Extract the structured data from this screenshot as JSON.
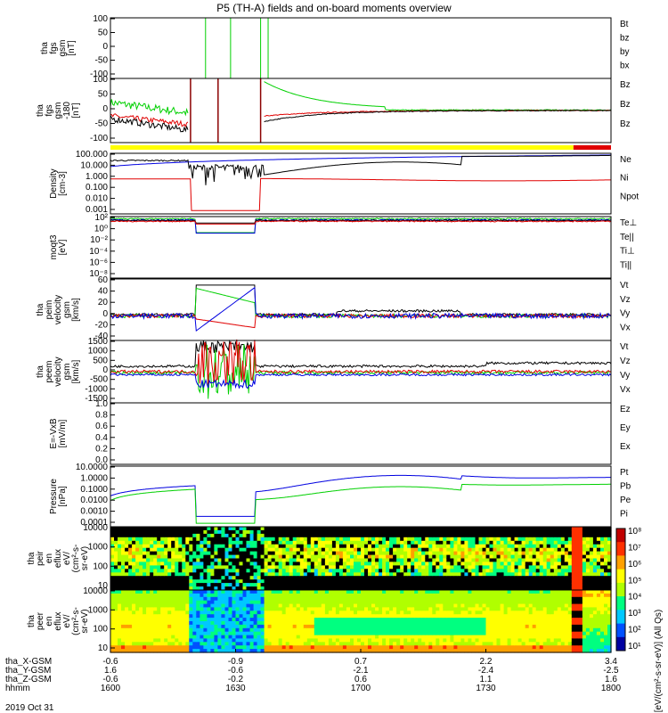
{
  "title": "P5 (TH-A) fields and on-board moments overview",
  "date": "2019 Oct 31",
  "colors": {
    "black": "#000000",
    "red": "#e00000",
    "green": "#00d000",
    "blue": "#0000e0",
    "yellow": "#ffff00"
  },
  "chart_data": [
    {
      "id": "fgs",
      "type": "line",
      "ylabel": [
        "tha",
        "fgs",
        "gsm",
        "[nT]"
      ],
      "yticks": [
        "100",
        "50",
        "0",
        "-50",
        "-100"
      ],
      "ylim": [
        -100,
        100
      ],
      "legend": [
        {
          "name": "Bt",
          "color": "#000000"
        },
        {
          "name": "bz",
          "color": "#e00000"
        },
        {
          "name": "by",
          "color": "#00d000"
        },
        {
          "name": "bx",
          "color": "#0000e0"
        }
      ]
    },
    {
      "id": "fgs_hi",
      "type": "line",
      "ylabel": [
        "tha",
        "fgs",
        "gsm",
        "-180",
        "[nT]"
      ],
      "yticks": [
        "100",
        "50",
        "0",
        "-50",
        "-100"
      ],
      "ylim": [
        -120,
        120
      ],
      "legend": [
        {
          "name": "Bz",
          "color": "#000000"
        },
        {
          "name": "Bz",
          "color": "#e00000"
        },
        {
          "name": "Bz",
          "color": "#00d000"
        }
      ]
    },
    {
      "id": "density",
      "type": "line",
      "ylabel": [
        "Density",
        "[cm-3]"
      ],
      "scale": "log",
      "yticks": [
        "100.000",
        "10.000",
        "1.000",
        "0.100",
        "0.010",
        "0.001"
      ],
      "legend": [
        {
          "name": "Ne",
          "color": "#e00000"
        },
        {
          "name": "Ni",
          "color": "#000000"
        },
        {
          "name": "Npot",
          "color": "#0000e0"
        }
      ]
    },
    {
      "id": "temp",
      "type": "line",
      "ylabel": [
        "moqt3",
        "[eV]"
      ],
      "scale": "log",
      "yticks": [
        "10²",
        "10⁰",
        "10⁻²",
        "10⁻⁴",
        "10⁻⁶",
        "10⁻⁸"
      ],
      "legend": [
        {
          "name": "Te⊥",
          "color": "#e00000"
        },
        {
          "name": "Te||",
          "color": "#000000"
        },
        {
          "name": "Ti⊥",
          "color": "#0000e0"
        },
        {
          "name": "Ti||",
          "color": "#00d000"
        }
      ]
    },
    {
      "id": "peim",
      "type": "line",
      "ylabel": [
        "tha",
        "peim",
        "velocity",
        "gsm",
        "[km/s]"
      ],
      "yticks": [
        "60",
        "40",
        "20",
        "0",
        "-20",
        "-40"
      ],
      "ylim": [
        -40,
        60
      ],
      "legend": [
        {
          "name": "Vt",
          "color": "#000000"
        },
        {
          "name": "Vz",
          "color": "#e00000"
        },
        {
          "name": "Vy",
          "color": "#00d000"
        },
        {
          "name": "Vx",
          "color": "#0000e0"
        }
      ]
    },
    {
      "id": "peem",
      "type": "line",
      "ylabel": [
        "tha",
        "peem",
        "velocity",
        "gsm",
        "[km/s]"
      ],
      "yticks": [
        "1500",
        "1000",
        "500",
        "0",
        "-500",
        "-1000",
        "-1500"
      ],
      "ylim": [
        -1500,
        1500
      ],
      "legend": [
        {
          "name": "Vt",
          "color": "#000000"
        },
        {
          "name": "Vz",
          "color": "#e00000"
        },
        {
          "name": "Vy",
          "color": "#00d000"
        },
        {
          "name": "Vx",
          "color": "#0000e0"
        }
      ]
    },
    {
      "id": "efield",
      "type": "line",
      "ylabel": [
        "E=-VxB",
        "[mV/m]"
      ],
      "yticks": [
        "1.0",
        "0.8",
        "0.6",
        "0.4",
        "0.2",
        "0.0"
      ],
      "ylim": [
        0,
        1
      ],
      "legend": [
        {
          "name": "Ez",
          "color": "#e00000"
        },
        {
          "name": "Ey",
          "color": "#00d000"
        },
        {
          "name": "Ex",
          "color": "#0000e0"
        }
      ]
    },
    {
      "id": "pressure",
      "type": "line",
      "ylabel": [
        "Pressure",
        "[nPa]"
      ],
      "scale": "log",
      "yticks": [
        "10.0000",
        "1.0000",
        "0.1000",
        "0.0100",
        "0.0010",
        "0.0001"
      ],
      "legend": [
        {
          "name": "Pt",
          "color": "#000000"
        },
        {
          "name": "Pb",
          "color": "#e00000"
        },
        {
          "name": "Pe",
          "color": "#00d000"
        },
        {
          "name": "Pi",
          "color": "#0000e0"
        }
      ]
    },
    {
      "id": "peir",
      "type": "heatmap",
      "ylabel": [
        "tha",
        "peir",
        "en",
        "eflux",
        "eV/",
        "(cm²-s-",
        "sr-eV)"
      ],
      "yticks": [
        "10000",
        "1000",
        "100",
        "10"
      ]
    },
    {
      "id": "peer",
      "type": "heatmap",
      "ylabel": [
        "tha",
        "peer",
        "en",
        "eflux",
        "eV/",
        "(cm²-s-",
        "sr-eV)"
      ],
      "yticks": [
        "10000",
        "1000",
        "100",
        "10"
      ]
    }
  ],
  "colorbar": {
    "ticks": [
      "10⁸",
      "10⁷",
      "10⁶",
      "10⁵",
      "10⁴",
      "10³",
      "10²",
      "10¹"
    ],
    "label": "[eV/(cm²-s-sr-eV)] (All Qs)"
  },
  "xaxis": {
    "rows": [
      {
        "label": "tha_X-GSM",
        "values": [
          "-0.6",
          "-0.9",
          "0.7",
          "2.2",
          "3.4"
        ]
      },
      {
        "label": "tha_Y-GSM",
        "values": [
          "1.6",
          "-0.6",
          "-2.1",
          "-2.4",
          "-2.5"
        ]
      },
      {
        "label": "tha_Z-GSM",
        "values": [
          "-0.6",
          "-0.2",
          "0.6",
          "1.1",
          "1.6"
        ]
      },
      {
        "label": "hhmm",
        "values": [
          "1600",
          "1630",
          "1700",
          "1730",
          "1800"
        ]
      }
    ]
  }
}
